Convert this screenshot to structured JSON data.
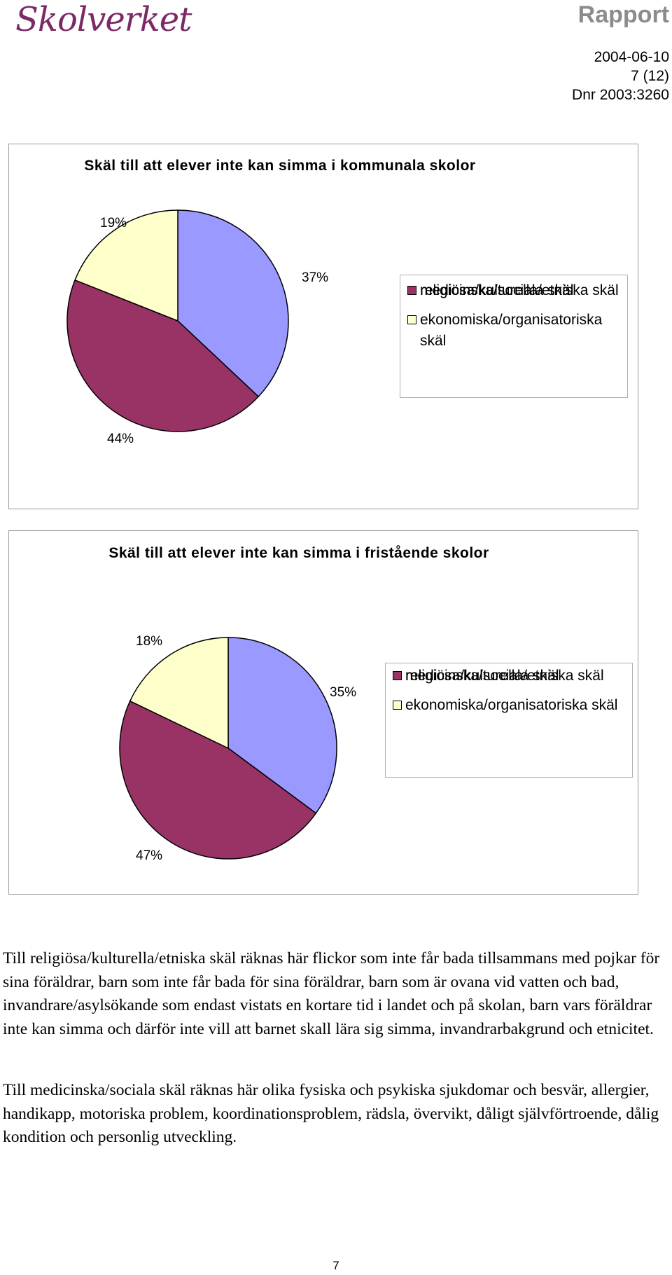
{
  "header": {
    "logo_text": "Skolverket",
    "report_label": "Rapport",
    "date": "2004-06-10",
    "page_of": "7 (12)",
    "dnr": "Dnr 2003:3260"
  },
  "colors": {
    "religious": "#9999ff",
    "medical": "#993366",
    "economic": "#ffffcc",
    "logo": "#7b2a66",
    "report_label": "#8c8c8c"
  },
  "chart_data": [
    {
      "type": "pie",
      "title": "Skäl till att elever inte kan simma i kommunala skolor",
      "categories": [
        "religiösa/kulturella/etniska skäl",
        "medicinska/sociala skäl",
        "ekonomiska/organisatoriska skäl"
      ],
      "values": [
        37,
        44,
        19
      ],
      "data_labels": [
        "37%",
        "44%",
        "19%"
      ],
      "legend": "right"
    },
    {
      "type": "pie",
      "title": "Skäl till att elever inte kan simma i fristående skolor",
      "categories": [
        "religiösa/kulturella/etniska skäl",
        "medicinska/sociala skäl",
        "ekonomiska/organisatoriska skäl"
      ],
      "values": [
        35,
        47,
        18
      ],
      "data_labels": [
        "35%",
        "47%",
        "18%"
      ],
      "legend": "right"
    }
  ],
  "body": {
    "paragraph_1": "Till religiösa/kulturella/etniska skäl räknas här flickor som inte får bada tillsammans med pojkar för sina föräldrar, barn som inte får bada för sina föräldrar, barn som är ovana vid vatten och bad, invandrare/asylsökande som endast vistats en kortare tid i landet och på skolan, barn vars föräldrar inte kan simma och därför inte vill att barnet skall lära sig simma, invandrarbakgrund och etnicitet.",
    "paragraph_2": "Till medicinska/sociala skäl räknas här olika fysiska och psykiska sjukdomar och besvär, allergier, handikapp, motoriska problem, koordinationsproblem, rädsla, övervikt, dåligt självförtroende, dålig kondition och personlig utveckling."
  },
  "footer": {
    "page_number": "7"
  }
}
